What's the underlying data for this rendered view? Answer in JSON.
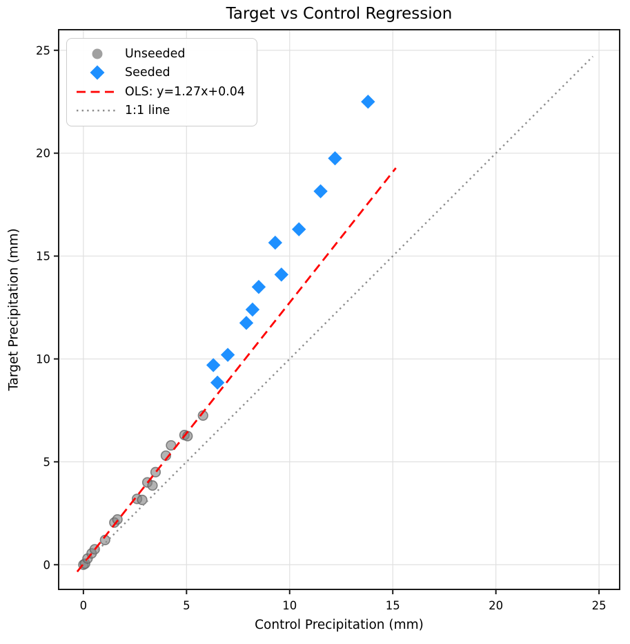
{
  "chart_data": {
    "type": "scatter",
    "title": "Target vs Control Regression",
    "xlabel": "Control Precipitation (mm)",
    "ylabel": "Target Precipitation (mm)",
    "xlim": [
      -1.2,
      26.0
    ],
    "ylim": [
      -1.2,
      26.0
    ],
    "xticks": [
      0,
      5,
      10,
      15,
      20,
      25
    ],
    "yticks": [
      0,
      5,
      10,
      15,
      20,
      25
    ],
    "grid": true,
    "legend_position": "upper left",
    "series": [
      {
        "name": "Unseeded",
        "kind": "scatter",
        "marker": "circle",
        "color": "#808080",
        "edge_color": "#606060",
        "opacity": 0.6,
        "points": [
          [
            0.0,
            0.0
          ],
          [
            0.08,
            0.05
          ],
          [
            0.2,
            0.3
          ],
          [
            0.4,
            0.55
          ],
          [
            0.55,
            0.75
          ],
          [
            1.05,
            1.2
          ],
          [
            1.5,
            2.05
          ],
          [
            1.65,
            2.2
          ],
          [
            2.6,
            3.2
          ],
          [
            2.85,
            3.15
          ],
          [
            3.1,
            4.0
          ],
          [
            3.35,
            3.85
          ],
          [
            3.5,
            4.5
          ],
          [
            4.0,
            5.3
          ],
          [
            4.25,
            5.8
          ],
          [
            4.9,
            6.3
          ],
          [
            5.05,
            6.25
          ],
          [
            5.8,
            7.25
          ]
        ]
      },
      {
        "name": "Seeded",
        "kind": "scatter",
        "marker": "diamond",
        "color": "#1E90FF",
        "opacity": 1.0,
        "points": [
          [
            6.3,
            9.7
          ],
          [
            6.5,
            8.85
          ],
          [
            7.0,
            10.2
          ],
          [
            7.9,
            11.75
          ],
          [
            8.2,
            12.4
          ],
          [
            8.5,
            13.5
          ],
          [
            9.3,
            15.65
          ],
          [
            9.6,
            14.1
          ],
          [
            10.45,
            16.3
          ],
          [
            11.5,
            18.15
          ],
          [
            12.2,
            19.75
          ],
          [
            13.8,
            22.5
          ]
        ]
      },
      {
        "name": "OLS: y=1.27x+0.04",
        "kind": "line",
        "style": "dashed",
        "color": "#FF0000",
        "slope": 1.27,
        "intercept": 0.04,
        "points": [
          [
            -0.3,
            -0.34
          ],
          [
            15.15,
            19.28
          ]
        ]
      },
      {
        "name": "1:1 line",
        "kind": "line",
        "style": "dotted",
        "color": "#8C8C8C",
        "slope": 1.0,
        "intercept": 0.0,
        "points": [
          [
            0.0,
            0.0
          ],
          [
            24.7,
            24.7
          ]
        ]
      }
    ]
  }
}
